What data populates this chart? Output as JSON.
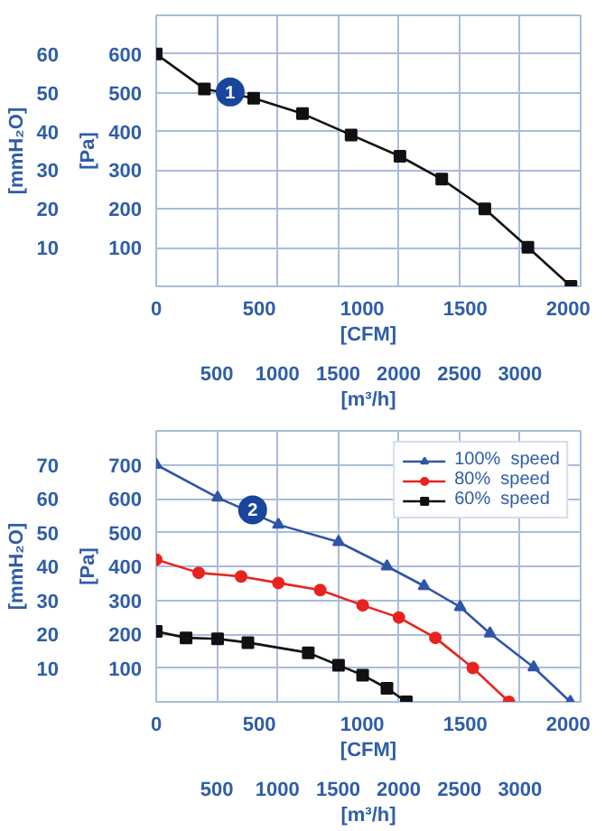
{
  "chart_data": [
    {
      "type": "line",
      "xlabel": "[CFM]",
      "x2label": "[m³/h]",
      "ylabel": "[Pa]",
      "y2label": "[mmH₂O]",
      "xlim": [
        0,
        2060
      ],
      "xticks": [
        0,
        500,
        1000,
        1500,
        2000
      ],
      "x2lim": [
        0,
        3500
      ],
      "x2ticks": [
        500,
        1000,
        1500,
        2000,
        2500,
        3000
      ],
      "ylim": [
        0,
        700
      ],
      "yticks": [
        100,
        200,
        300,
        400,
        500,
        600
      ],
      "y2lim": [
        0,
        70
      ],
      "y2ticks": [
        10,
        20,
        30,
        40,
        50,
        60
      ],
      "grid": true,
      "marker": "square",
      "series": [
        {
          "color": "#111111",
          "x": [
            0,
            234,
            473,
            710,
            946,
            1183,
            1386,
            1595,
            1804,
            2013
          ],
          "values": [
            600,
            510,
            486,
            446,
            391,
            336,
            277,
            200,
            101,
            0
          ]
        }
      ],
      "annotations": [
        {
          "text": "1",
          "x": 359,
          "y": 502
        }
      ]
    },
    {
      "type": "line",
      "xlabel": "[CFM]",
      "x2label": "[m³/h]",
      "ylabel": "[Pa]",
      "y2label": "[mmH₂O]",
      "xlim": [
        0,
        2060
      ],
      "xticks": [
        0,
        500,
        1000,
        1500,
        2000
      ],
      "x2lim": [
        0,
        3500
      ],
      "x2ticks": [
        500,
        1000,
        1500,
        2000,
        2500,
        3000
      ],
      "ylim": [
        0,
        800
      ],
      "yticks": [
        100,
        200,
        300,
        400,
        500,
        600,
        700
      ],
      "y2lim": [
        0,
        80
      ],
      "y2ticks": [
        10,
        20,
        30,
        40,
        50,
        60,
        70
      ],
      "grid": true,
      "legend": "top right",
      "series": [
        {
          "name": "100%  speed",
          "color": "#2f55a8",
          "marker": "triangle",
          "x": [
            0,
            298,
            593,
            885,
            1120,
            1300,
            1475,
            1620,
            1832,
            2010
          ],
          "values": [
            700,
            603,
            523,
            472,
            400,
            342,
            280,
            202,
            102,
            0
          ]
        },
        {
          "name": "80%  speed",
          "color": "#e8231f",
          "marker": "circle",
          "x": [
            0,
            206,
            412,
            593,
            796,
            1002,
            1178,
            1355,
            1537,
            1712
          ],
          "values": [
            420,
            381,
            370,
            351,
            330,
            285,
            249,
            189,
            100,
            0
          ]
        },
        {
          "name": "60%  speed",
          "color": "#111111",
          "marker": "square",
          "x": [
            0,
            145,
            298,
            445,
            738,
            885,
            1002,
            1120,
            1214
          ],
          "values": [
            208,
            189,
            186,
            175,
            145,
            108,
            79,
            40,
            0
          ]
        }
      ],
      "annotations": [
        {
          "text": "2",
          "x": 468,
          "y": 567
        }
      ]
    }
  ]
}
